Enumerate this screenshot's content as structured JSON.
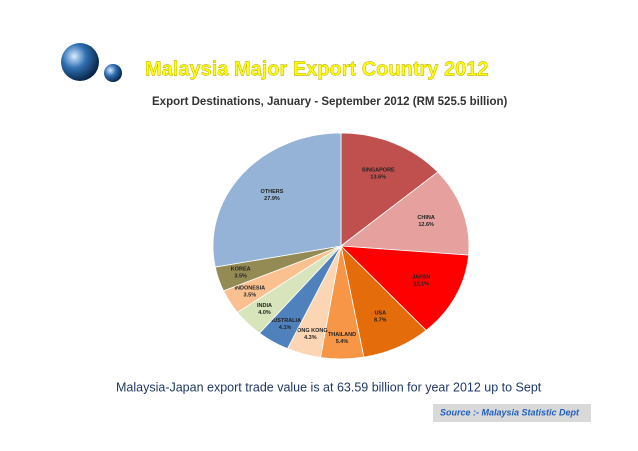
{
  "chart_data": {
    "type": "pie",
    "title": "Malaysia Major Export Country 2012",
    "subtitle": "Export Destinations, January - September 2012 (RM 525.5 billion)",
    "caption": "Malaysia-Japan export trade value is at 63.59 billion for year 2012 up to Sept",
    "source": "Source :- Malaysia Statistic Dept",
    "categories": [
      "SINGAPORE",
      "CHINA",
      "JAPAN",
      "USA",
      "THAILAND",
      "HONG KONG",
      "AUSTRALIA",
      "INDIA",
      "INDONESIA",
      "KOREA",
      "OTHERS"
    ],
    "values": [
      13.6,
      12.6,
      12.1,
      8.7,
      5.4,
      4.3,
      4.1,
      4.0,
      3.5,
      3.5,
      27.9
    ],
    "value_labels": [
      "13.6%",
      "12.6%",
      "12.1%",
      "8.7%",
      "5.4%",
      "4.3%",
      "4.1%",
      "4.0%",
      "3.5%",
      "3.5%",
      "27.9%"
    ],
    "colors": [
      "#c0504d",
      "#e6a09e",
      "#ff0000",
      "#e46c0a",
      "#f79646",
      "#fcd5b4",
      "#4f81bd",
      "#d7e4bc",
      "#fac090",
      "#948a54",
      "#95b3d7"
    ]
  }
}
